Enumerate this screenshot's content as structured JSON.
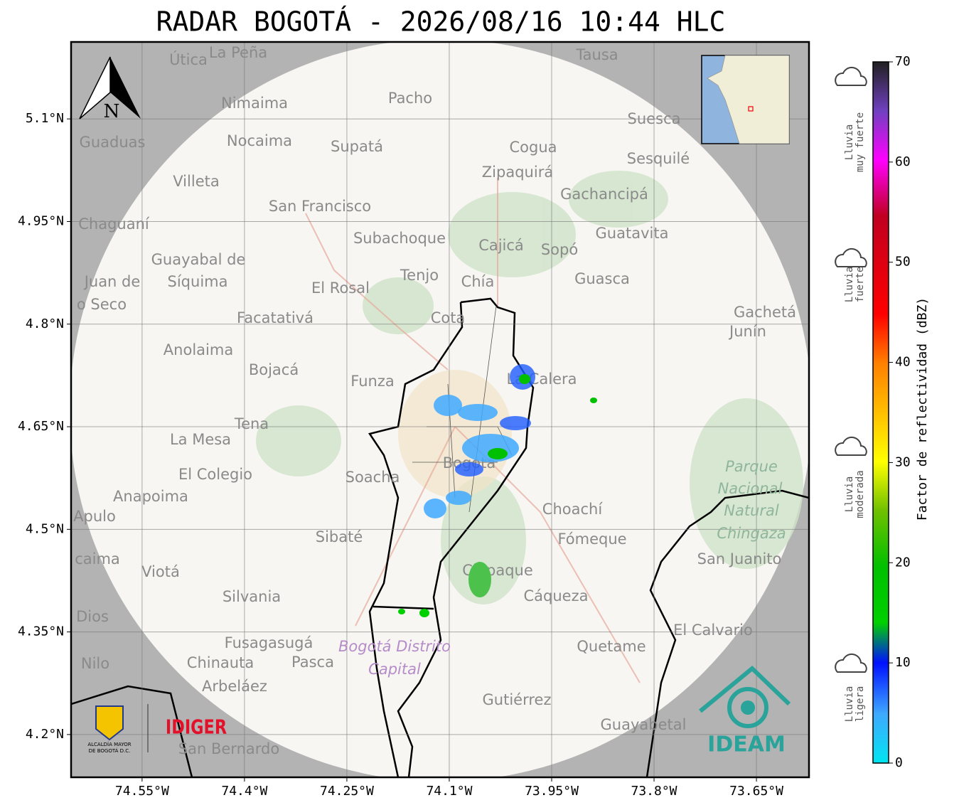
{
  "title": "RADAR BOGOTÁ - 2026/08/16 10:44 HLC",
  "lon_ticks": [
    {
      "value": -74.55,
      "label": "74.55°W"
    },
    {
      "value": -74.4,
      "label": "74.4°W"
    },
    {
      "value": -74.25,
      "label": "74.25°W"
    },
    {
      "value": -74.1,
      "label": "74.1°W"
    },
    {
      "value": -73.95,
      "label": "73.95°W"
    },
    {
      "value": -73.8,
      "label": "73.8°W"
    },
    {
      "value": -73.65,
      "label": "73.65°W"
    }
  ],
  "lat_ticks": [
    {
      "value": 5.1,
      "label": "5.1°N"
    },
    {
      "value": 4.95,
      "label": "4.95°N"
    },
    {
      "value": 4.8,
      "label": "4.8°N"
    },
    {
      "value": 4.65,
      "label": "4.65°N"
    },
    {
      "value": 4.5,
      "label": "4.5°N"
    },
    {
      "value": 4.35,
      "label": "4.35°N"
    },
    {
      "value": 4.2,
      "label": "4.2°N"
    }
  ],
  "lon_range": [
    -74.654,
    -73.573
  ],
  "lat_range": [
    4.1375,
    5.2125
  ],
  "north_label": "N",
  "places": [
    "Útica",
    "La Peña",
    "Tausa",
    "Pacho",
    "Nimaima",
    "Guaduas",
    "Nocaima",
    "Supatá",
    "Cogua",
    "Suesca",
    "Sesquilé",
    "Zipaquirá",
    "Villeta",
    "Gachancipá",
    "San Francisco",
    "Chaguaní",
    "Subachoque",
    "Cajicá",
    "Sopó",
    "Guatavita",
    "Guayabal de",
    "Síquima",
    "Tenjo",
    "Chía",
    "Guasca",
    "Juan de",
    "o Seco",
    "El Rosal",
    "Facatativá",
    "Cota",
    "Gachetá",
    "Junín",
    "Anolaima",
    "Bojacá",
    "Funza",
    "La Calera",
    "Tena",
    "La Mesa",
    "El Colegio",
    "Soacha",
    "Bogotá",
    "Parque",
    "Nacional",
    "Natural",
    "Chingaza",
    "Anapoima",
    "Apulo",
    "Choachí",
    "Sibaté",
    "Fómeque",
    "San Juanito",
    "caima",
    "Viotá",
    "Chipaque",
    "Silvania",
    "Cáqueza",
    "Dios",
    "El Calvario",
    "Fusagasugá",
    "Bogotá Distrito",
    "Capital",
    "Quetame",
    "Nilo",
    "Chinauta",
    "Pasca",
    "Arbeláez",
    "Gutiérrez",
    "Guayabetal",
    "San Bernardo"
  ],
  "colorbar": {
    "label": "Factor de reflectividad (dBZ)",
    "range": [
      0,
      70
    ],
    "ticks": [
      0,
      10,
      20,
      30,
      40,
      50,
      60,
      70
    ]
  },
  "legend": [
    [
      "Lluvia",
      "muy fuerte"
    ],
    [
      "Lluvia",
      "fuerte"
    ],
    [
      "Lluvia",
      "moderada"
    ],
    [
      "Lluvia",
      "ligera"
    ]
  ],
  "logos": {
    "alcaldia": [
      "ALCALDÍA MAYOR",
      "DE BOGOTÁ D.C."
    ],
    "idiger": "IDIGER",
    "ideam": "IDEAM"
  }
}
